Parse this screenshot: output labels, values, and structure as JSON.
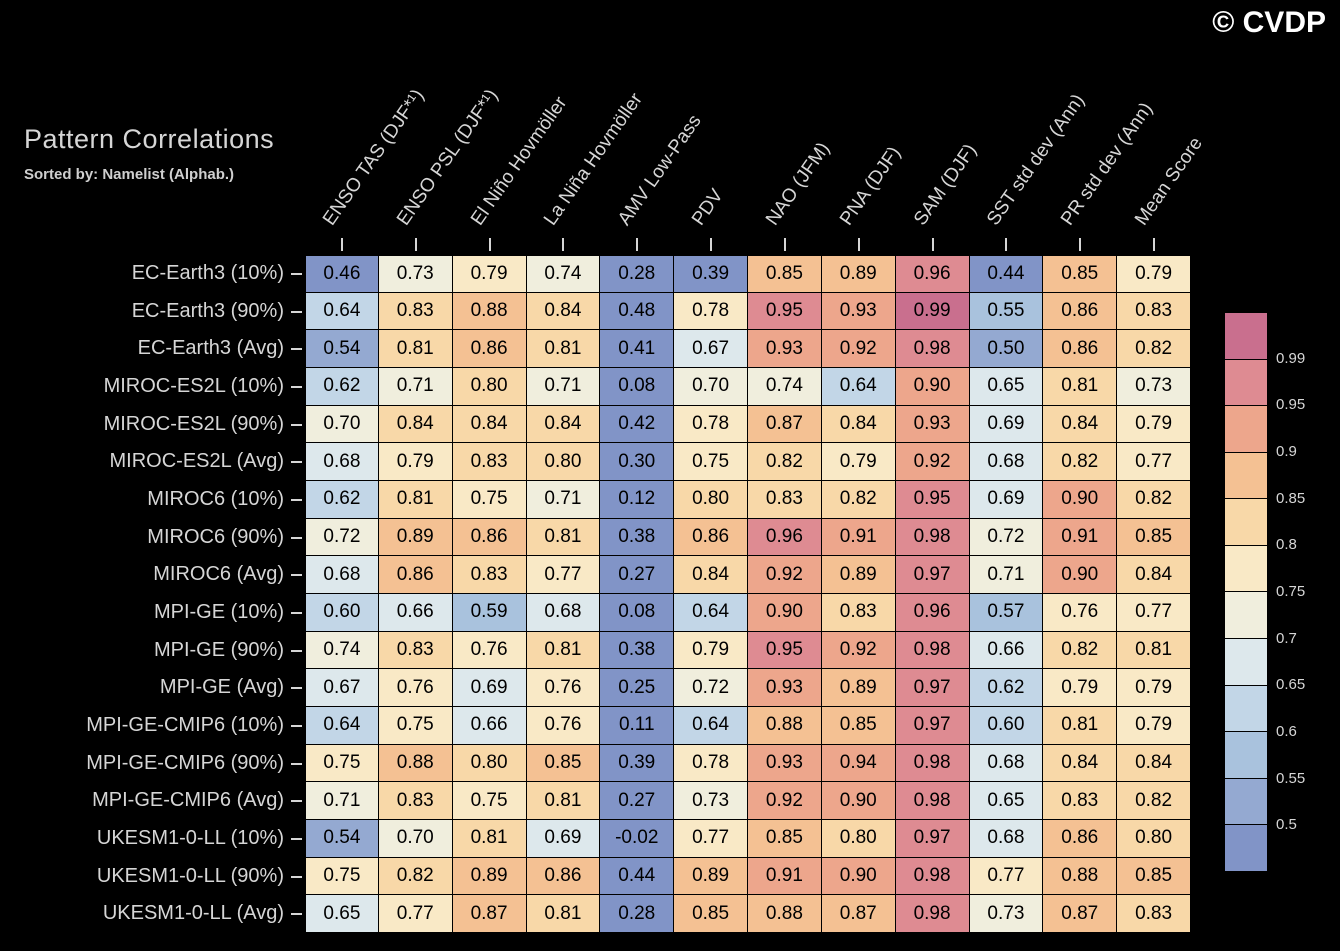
{
  "watermark": "© CVDP",
  "title": "Pattern Correlations",
  "subtitle": "Sorted by: Namelist (Alphab.)",
  "colors": {
    "background": "#000000",
    "label_text": "#d6d6d6",
    "cell_text": "#000000"
  },
  "chart_data": {
    "type": "heatmap",
    "title": "Pattern Correlations",
    "subtitle": "Sorted by: Namelist (Alphab.)",
    "columns": [
      "ENSO TAS (DJF*¹)",
      "ENSO PSL (DJF*¹)",
      "El Niño Hovmöller",
      "La Niña Hovmöller",
      "AMV Low-Pass",
      "PDV",
      "NAO (JFM)",
      "PNA (DJF)",
      "SAM (DJF)",
      "SST std dev (Ann)",
      "PR std dev (Ann)",
      "Mean Score"
    ],
    "rows": [
      "EC-Earth3 (10%)",
      "EC-Earth3 (90%)",
      "EC-Earth3 (Avg)",
      "MIROC-ES2L (10%)",
      "MIROC-ES2L (90%)",
      "MIROC-ES2L (Avg)",
      "MIROC6 (10%)",
      "MIROC6 (90%)",
      "MIROC6 (Avg)",
      "MPI-GE (10%)",
      "MPI-GE (90%)",
      "MPI-GE (Avg)",
      "MPI-GE-CMIP6 (10%)",
      "MPI-GE-CMIP6 (90%)",
      "MPI-GE-CMIP6 (Avg)",
      "UKESM1-0-LL (10%)",
      "UKESM1-0-LL (90%)",
      "UKESM1-0-LL (Avg)"
    ],
    "values": [
      [
        0.46,
        0.73,
        0.79,
        0.74,
        0.28,
        0.39,
        0.85,
        0.89,
        0.96,
        0.44,
        0.85,
        0.79
      ],
      [
        0.64,
        0.83,
        0.88,
        0.84,
        0.48,
        0.78,
        0.95,
        0.93,
        0.99,
        0.55,
        0.86,
        0.83
      ],
      [
        0.54,
        0.81,
        0.86,
        0.81,
        0.41,
        0.67,
        0.93,
        0.92,
        0.98,
        0.5,
        0.86,
        0.82
      ],
      [
        0.62,
        0.71,
        0.8,
        0.71,
        0.08,
        0.7,
        0.74,
        0.64,
        0.9,
        0.65,
        0.81,
        0.73
      ],
      [
        0.7,
        0.84,
        0.84,
        0.84,
        0.42,
        0.78,
        0.87,
        0.84,
        0.93,
        0.69,
        0.84,
        0.79
      ],
      [
        0.68,
        0.79,
        0.83,
        0.8,
        0.3,
        0.75,
        0.82,
        0.79,
        0.92,
        0.68,
        0.82,
        0.77
      ],
      [
        0.62,
        0.81,
        0.75,
        0.71,
        0.12,
        0.8,
        0.83,
        0.82,
        0.95,
        0.69,
        0.9,
        0.82
      ],
      [
        0.72,
        0.89,
        0.86,
        0.81,
        0.38,
        0.86,
        0.96,
        0.91,
        0.98,
        0.72,
        0.91,
        0.85
      ],
      [
        0.68,
        0.86,
        0.83,
        0.77,
        0.27,
        0.84,
        0.92,
        0.89,
        0.97,
        0.71,
        0.9,
        0.84
      ],
      [
        0.6,
        0.66,
        0.59,
        0.68,
        0.08,
        0.64,
        0.9,
        0.83,
        0.96,
        0.57,
        0.76,
        0.77
      ],
      [
        0.74,
        0.83,
        0.76,
        0.81,
        0.38,
        0.79,
        0.95,
        0.92,
        0.98,
        0.66,
        0.82,
        0.81
      ],
      [
        0.67,
        0.76,
        0.69,
        0.76,
        0.25,
        0.72,
        0.93,
        0.89,
        0.97,
        0.62,
        0.79,
        0.79
      ],
      [
        0.64,
        0.75,
        0.66,
        0.76,
        0.11,
        0.64,
        0.88,
        0.85,
        0.97,
        0.6,
        0.81,
        0.79
      ],
      [
        0.75,
        0.88,
        0.8,
        0.85,
        0.39,
        0.78,
        0.93,
        0.94,
        0.98,
        0.68,
        0.84,
        0.84
      ],
      [
        0.71,
        0.83,
        0.75,
        0.81,
        0.27,
        0.73,
        0.92,
        0.9,
        0.98,
        0.65,
        0.83,
        0.82
      ],
      [
        0.54,
        0.7,
        0.81,
        0.69,
        -0.02,
        0.77,
        0.85,
        0.8,
        0.97,
        0.68,
        0.86,
        0.8
      ],
      [
        0.75,
        0.82,
        0.89,
        0.86,
        0.44,
        0.89,
        0.91,
        0.9,
        0.98,
        0.77,
        0.88,
        0.85
      ],
      [
        0.65,
        0.77,
        0.87,
        0.81,
        0.28,
        0.85,
        0.88,
        0.87,
        0.98,
        0.73,
        0.87,
        0.83
      ]
    ],
    "colorbar": {
      "labels_top_to_bottom": [
        "0.99",
        "0.95",
        "0.9",
        "0.85",
        "0.8",
        "0.75",
        "0.7",
        "0.65",
        "0.6",
        "0.55",
        "0.5"
      ],
      "levels_low_to_high": [
        0.5,
        0.55,
        0.6,
        0.65,
        0.7,
        0.75,
        0.8,
        0.85,
        0.9,
        0.95,
        0.99
      ],
      "colors_low_to_high": [
        "#8194c7",
        "#94a9d1",
        "#a9c2dd",
        "#c2d6e7",
        "#dde8ec",
        "#f0eedd",
        "#f9e9c6",
        "#f8d8a8",
        "#f4c193",
        "#eda68c",
        "#de8b92",
        "#c96f8e"
      ]
    }
  }
}
